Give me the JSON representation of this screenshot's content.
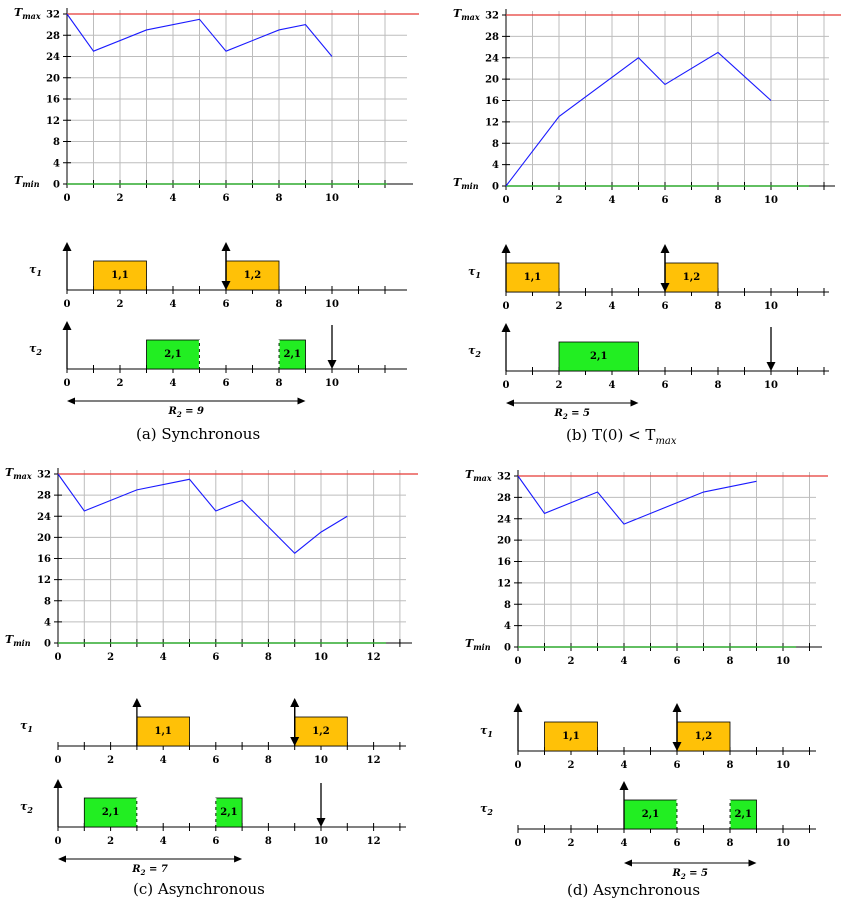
{
  "colors": {
    "tmax_line": "#e53935",
    "tmin_line": "#2eaa2e",
    "temperature": "#1a1aff",
    "grid": "#bdbdbd",
    "job_tau1": "#ffc107",
    "job_tau2": "#22ee22"
  },
  "labels": {
    "tmax_main": "T",
    "tmax_sub": "max",
    "tmin_main": "T",
    "tmin_sub": "min",
    "tau1_main": "τ",
    "tau1_sub": "1",
    "tau2_main": "τ",
    "tau2_sub": "2"
  },
  "captions": [
    "(a)  Synchronous",
    "(b)  T(0) < T",
    "(c)  Asynchronous",
    "(d)  Asynchronous"
  ],
  "caption_b_sub": "max",
  "chart_data": [
    {
      "panel": "a",
      "type": "line",
      "title": "",
      "temperature": {
        "x": [
          0,
          1,
          3,
          5,
          6,
          8,
          9,
          10
        ],
        "y": [
          32,
          25,
          29,
          31,
          25,
          29,
          30,
          24
        ],
        "xlim": [
          0,
          12.8
        ],
        "ylim": [
          0,
          32
        ],
        "x_ticks": [
          0,
          2,
          4,
          6,
          8,
          10
        ],
        "y_ticks": [
          0,
          4,
          8,
          12,
          16,
          20,
          24,
          28,
          32
        ],
        "tmax": 32,
        "tmin": 0,
        "grid": true
      },
      "schedule": {
        "x_ticks": [
          0,
          2,
          4,
          6,
          8,
          10
        ],
        "tau1": {
          "jobs": [
            {
              "label": "1,1",
              "start": 1,
              "end": 3
            },
            {
              "label": "1,2",
              "start": 6,
              "end": 8
            }
          ],
          "releases": [
            0,
            6
          ],
          "deadlines": [
            6
          ]
        },
        "tau2": {
          "jobs": [
            {
              "label": "2,1",
              "start": 3,
              "end": 5,
              "cut": "right"
            },
            {
              "label": "2,1",
              "start": 8,
              "end": 9,
              "cut": "left"
            }
          ],
          "releases": [
            0
          ],
          "deadlines": [
            10
          ]
        },
        "response": {
          "label_main": "R",
          "label_sub": "2",
          "label_value": "= 9",
          "start": 0,
          "end": 9
        }
      }
    },
    {
      "panel": "b",
      "type": "line",
      "title": "",
      "temperature": {
        "x": [
          0,
          2,
          5,
          6,
          8,
          10
        ],
        "y": [
          0,
          13,
          24,
          19,
          25,
          16
        ],
        "xlim": [
          0,
          12
        ],
        "ylim": [
          0,
          32
        ],
        "x_ticks": [
          0,
          2,
          4,
          6,
          8,
          10
        ],
        "y_ticks": [
          0,
          4,
          8,
          12,
          16,
          20,
          24,
          28,
          32
        ],
        "tmax": 32,
        "tmin": 0,
        "grid": true
      },
      "schedule": {
        "x_ticks": [
          0,
          2,
          4,
          6,
          8,
          10
        ],
        "tau1": {
          "jobs": [
            {
              "label": "1,1",
              "start": 0,
              "end": 2
            },
            {
              "label": "1,2",
              "start": 6,
              "end": 8
            }
          ],
          "releases": [
            0,
            6
          ],
          "deadlines": [
            6
          ]
        },
        "tau2": {
          "jobs": [
            {
              "label": "2,1",
              "start": 2,
              "end": 5
            }
          ],
          "releases": [
            0
          ],
          "deadlines": [
            10
          ]
        },
        "response": {
          "label_main": "R",
          "label_sub": "2",
          "label_value": "= 5",
          "start": 0,
          "end": 5
        }
      }
    },
    {
      "panel": "c",
      "type": "line",
      "title": "",
      "temperature": {
        "x": [
          0,
          1,
          3,
          5,
          6,
          7,
          9,
          10,
          11
        ],
        "y": [
          32,
          25,
          29,
          31,
          25,
          27,
          17,
          21,
          24
        ],
        "xlim": [
          0,
          13.4
        ],
        "ylim": [
          0,
          32
        ],
        "x_ticks": [
          0,
          2,
          4,
          6,
          8,
          10,
          12
        ],
        "y_ticks": [
          0,
          4,
          8,
          12,
          16,
          20,
          24,
          28,
          32
        ],
        "tmax": 32,
        "tmin": 0,
        "grid": true
      },
      "schedule": {
        "x_ticks": [
          0,
          2,
          4,
          6,
          8,
          10,
          12
        ],
        "tau1": {
          "jobs": [
            {
              "label": "1,1",
              "start": 3,
              "end": 5
            },
            {
              "label": "1,2",
              "start": 9,
              "end": 11
            }
          ],
          "releases": [
            3,
            9
          ],
          "deadlines": [
            9
          ]
        },
        "tau2": {
          "jobs": [
            {
              "label": "2,1",
              "start": 1,
              "end": 3,
              "cut": "right"
            },
            {
              "label": "2,1",
              "start": 6,
              "end": 7,
              "cut": "left"
            }
          ],
          "releases": [
            0
          ],
          "deadlines": [
            10
          ]
        },
        "response": {
          "label_main": "R",
          "label_sub": "2",
          "label_value": "= 7",
          "start": 0,
          "end": 7
        }
      }
    },
    {
      "panel": "d",
      "type": "line",
      "title": "",
      "temperature": {
        "x": [
          0,
          1,
          3,
          4,
          7,
          9
        ],
        "y": [
          32,
          25,
          29,
          23,
          29,
          31
        ],
        "xlim": [
          0,
          11.5
        ],
        "ylim": [
          0,
          32
        ],
        "x_ticks": [
          0,
          2,
          4,
          6,
          8,
          10
        ],
        "y_ticks": [
          0,
          4,
          8,
          12,
          16,
          20,
          24,
          28,
          32
        ],
        "tmax": 32,
        "tmin": 0,
        "grid": true
      },
      "schedule": {
        "x_ticks": [
          0,
          2,
          4,
          6,
          8,
          10
        ],
        "tau1": {
          "jobs": [
            {
              "label": "1,1",
              "start": 1,
              "end": 3
            },
            {
              "label": "1,2",
              "start": 6,
              "end": 8
            }
          ],
          "releases": [
            0,
            6
          ],
          "deadlines": [
            6
          ]
        },
        "tau2": {
          "jobs": [
            {
              "label": "2,1",
              "start": 4,
              "end": 6,
              "cut": "right"
            },
            {
              "label": "2,1",
              "start": 8,
              "end": 9,
              "cut": "left"
            }
          ],
          "releases": [
            4
          ],
          "deadlines": [],
          "no_left_axis_arrow": true
        },
        "response": {
          "label_main": "R",
          "label_sub": "2",
          "label_value": "= 5",
          "start": 4,
          "end": 9
        }
      }
    }
  ]
}
